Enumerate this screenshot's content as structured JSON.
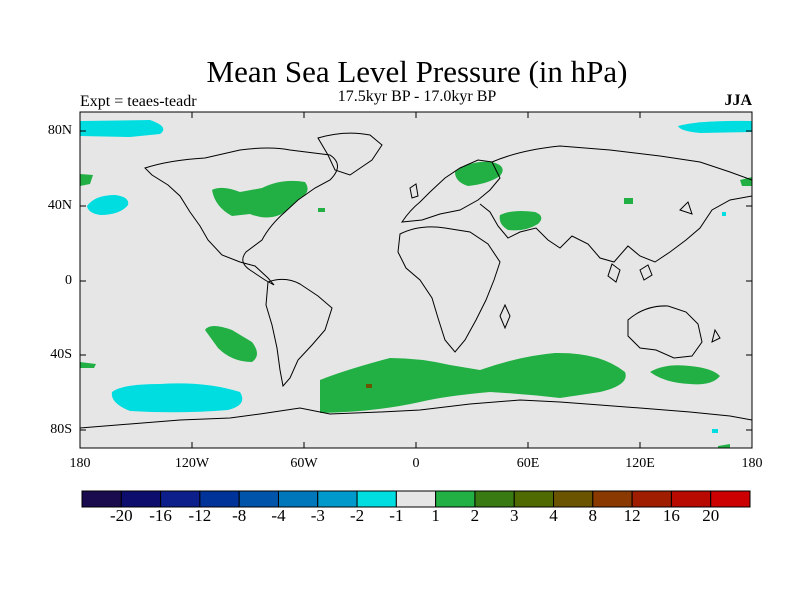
{
  "header": {
    "title": "Mean Sea Level Pressure (in hPa)",
    "subtitle": "17.5kyr BP - 17.0kyr BP",
    "expt": "Expt = teaes-teadr",
    "season": "JJA"
  },
  "axes": {
    "lat_ticks": [
      "80N",
      "40N",
      "0",
      "40S",
      "80S"
    ],
    "lon_ticks": [
      "180",
      "120W",
      "60W",
      "0",
      "60E",
      "120E",
      "180"
    ]
  },
  "colorbar": {
    "labels": [
      "-20",
      "-16",
      "-12",
      "-8",
      "-4",
      "-3",
      "-2",
      "-1",
      "1",
      "2",
      "3",
      "4",
      "8",
      "12",
      "16",
      "20"
    ],
    "colors": [
      "#1a0a4e",
      "#0d0d6e",
      "#0d1f8a",
      "#003399",
      "#0055aa",
      "#0077bb",
      "#0099cc",
      "#00dde0",
      "#e6e6e6",
      "#22b045",
      "#3a7a12",
      "#4f6a00",
      "#6a5400",
      "#8a3a00",
      "#a01e00",
      "#b80a00",
      "#cc0000"
    ]
  },
  "colors": {
    "background": "#e6e6e6",
    "positive": "#22b045",
    "negative": "#00dde0",
    "coastline": "#000000"
  }
}
